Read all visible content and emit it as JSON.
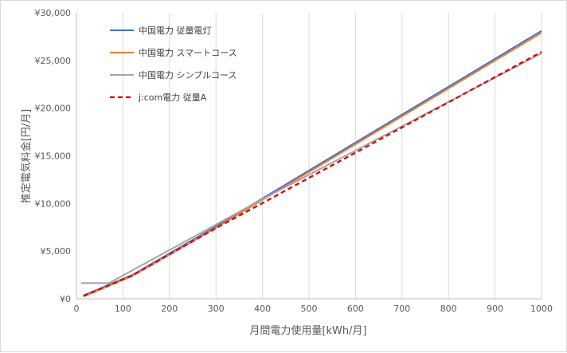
{
  "chart_data": {
    "type": "line",
    "title": "",
    "xlabel": "月間電力使用量[kWh/月]",
    "ylabel": "推定電気料金[円/月]",
    "xlim": [
      0,
      1000
    ],
    "ylim": [
      0,
      30000
    ],
    "x_ticks": [
      "0",
      "100",
      "200",
      "300",
      "400",
      "500",
      "600",
      "700",
      "800",
      "900",
      "1000"
    ],
    "y_ticks": [
      "¥0",
      "¥5,000",
      "¥10,000",
      "¥15,000",
      "¥20,000",
      "¥25,000",
      "¥30,000"
    ],
    "grid": "vertical",
    "legend_position": "top-left",
    "series": [
      {
        "name": "中国電力 従量電灯",
        "color": "#4472c4",
        "style": "solid",
        "points": [
          [
            15,
            350
          ],
          [
            120,
            2500
          ],
          [
            300,
            7600
          ],
          [
            1000,
            28100
          ]
        ]
      },
      {
        "name": "中国電力 スマートコース",
        "color": "#ed7d31",
        "style": "solid",
        "points": [
          [
            15,
            250
          ],
          [
            120,
            2400
          ],
          [
            300,
            7450
          ],
          [
            1000,
            27900
          ]
        ]
      },
      {
        "name": "中国電力 シンプルコース",
        "color": "#a5a5a5",
        "style": "solid",
        "points": [
          [
            10,
            1650
          ],
          [
            70,
            1650
          ],
          [
            400,
            10450
          ],
          [
            1000,
            25750
          ]
        ]
      },
      {
        "name": "j:com電力 従量A",
        "color": "#e00000",
        "style": "dashed",
        "points": [
          [
            15,
            300
          ],
          [
            120,
            2450
          ],
          [
            300,
            7400
          ],
          [
            1000,
            25900
          ]
        ]
      }
    ]
  }
}
